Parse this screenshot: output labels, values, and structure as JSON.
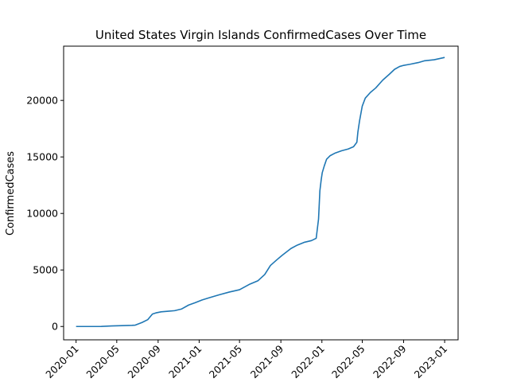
{
  "chart_data": {
    "type": "line",
    "title": "United States Virgin Islands  ConfirmedCases Over Time",
    "xlabel": "",
    "ylabel": "ConfirmedCases",
    "x_type": "date",
    "xlim": [
      "2019-11-25",
      "2023-02-10"
    ],
    "ylim": [
      -1180,
      24800
    ],
    "grid": false,
    "legend": "none",
    "line_color": "#1f77b4",
    "xticks": [
      {
        "value": "2020-01-01",
        "label": "2020-01"
      },
      {
        "value": "2020-05-01",
        "label": "2020-05"
      },
      {
        "value": "2020-09-01",
        "label": "2020-09"
      },
      {
        "value": "2021-01-01",
        "label": "2021-01"
      },
      {
        "value": "2021-05-01",
        "label": "2021-05"
      },
      {
        "value": "2021-09-01",
        "label": "2021-09"
      },
      {
        "value": "2022-01-01",
        "label": "2022-01"
      },
      {
        "value": "2022-05-01",
        "label": "2022-05"
      },
      {
        "value": "2022-09-01",
        "label": "2022-09"
      },
      {
        "value": "2023-01-01",
        "label": "2023-01"
      }
    ],
    "yticks": [
      {
        "value": 0,
        "label": "0"
      },
      {
        "value": 5000,
        "label": "5000"
      },
      {
        "value": 10000,
        "label": "10000"
      },
      {
        "value": 15000,
        "label": "15000"
      },
      {
        "value": 20000,
        "label": "20000"
      }
    ],
    "series": [
      {
        "x": [
          "2020-01-01",
          "2020-03-15",
          "2020-04-15",
          "2020-06-15",
          "2020-06-25",
          "2020-07-15",
          "2020-08-01",
          "2020-08-15",
          "2020-08-25",
          "2020-09-10",
          "2020-10-01",
          "2020-10-20",
          "2020-11-10",
          "2020-12-01",
          "2020-12-20",
          "2021-01-10",
          "2021-02-01",
          "2021-03-01",
          "2021-04-01",
          "2021-05-01",
          "2021-06-01",
          "2021-06-25",
          "2021-07-15",
          "2021-08-01",
          "2021-08-20",
          "2021-09-05",
          "2021-10-01",
          "2021-10-20",
          "2021-11-10",
          "2021-12-01",
          "2021-12-15",
          "2021-12-22",
          "2021-12-26",
          "2021-12-30",
          "2022-01-02",
          "2022-01-08",
          "2022-01-15",
          "2022-01-25",
          "2022-02-10",
          "2022-03-01",
          "2022-03-20",
          "2022-04-05",
          "2022-04-15",
          "2022-04-18",
          "2022-04-23",
          "2022-05-01",
          "2022-05-10",
          "2022-05-25",
          "2022-06-10",
          "2022-07-01",
          "2022-07-20",
          "2022-08-05",
          "2022-08-20",
          "2022-09-01",
          "2022-09-20",
          "2022-10-15",
          "2022-11-01",
          "2022-12-01",
          "2023-01-01"
        ],
        "y": [
          0,
          0,
          50,
          100,
          120,
          350,
          600,
          1100,
          1200,
          1300,
          1350,
          1400,
          1550,
          1900,
          2100,
          2350,
          2550,
          2800,
          3050,
          3250,
          3750,
          4050,
          4600,
          5400,
          5900,
          6300,
          6900,
          7200,
          7450,
          7600,
          7800,
          9500,
          12000,
          13000,
          13600,
          14200,
          14800,
          15100,
          15350,
          15550,
          15700,
          15900,
          16300,
          17200,
          18200,
          19500,
          20200,
          20700,
          21100,
          21800,
          22300,
          22750,
          23000,
          23100,
          23200,
          23350,
          23500,
          23600,
          23800
        ]
      }
    ]
  }
}
